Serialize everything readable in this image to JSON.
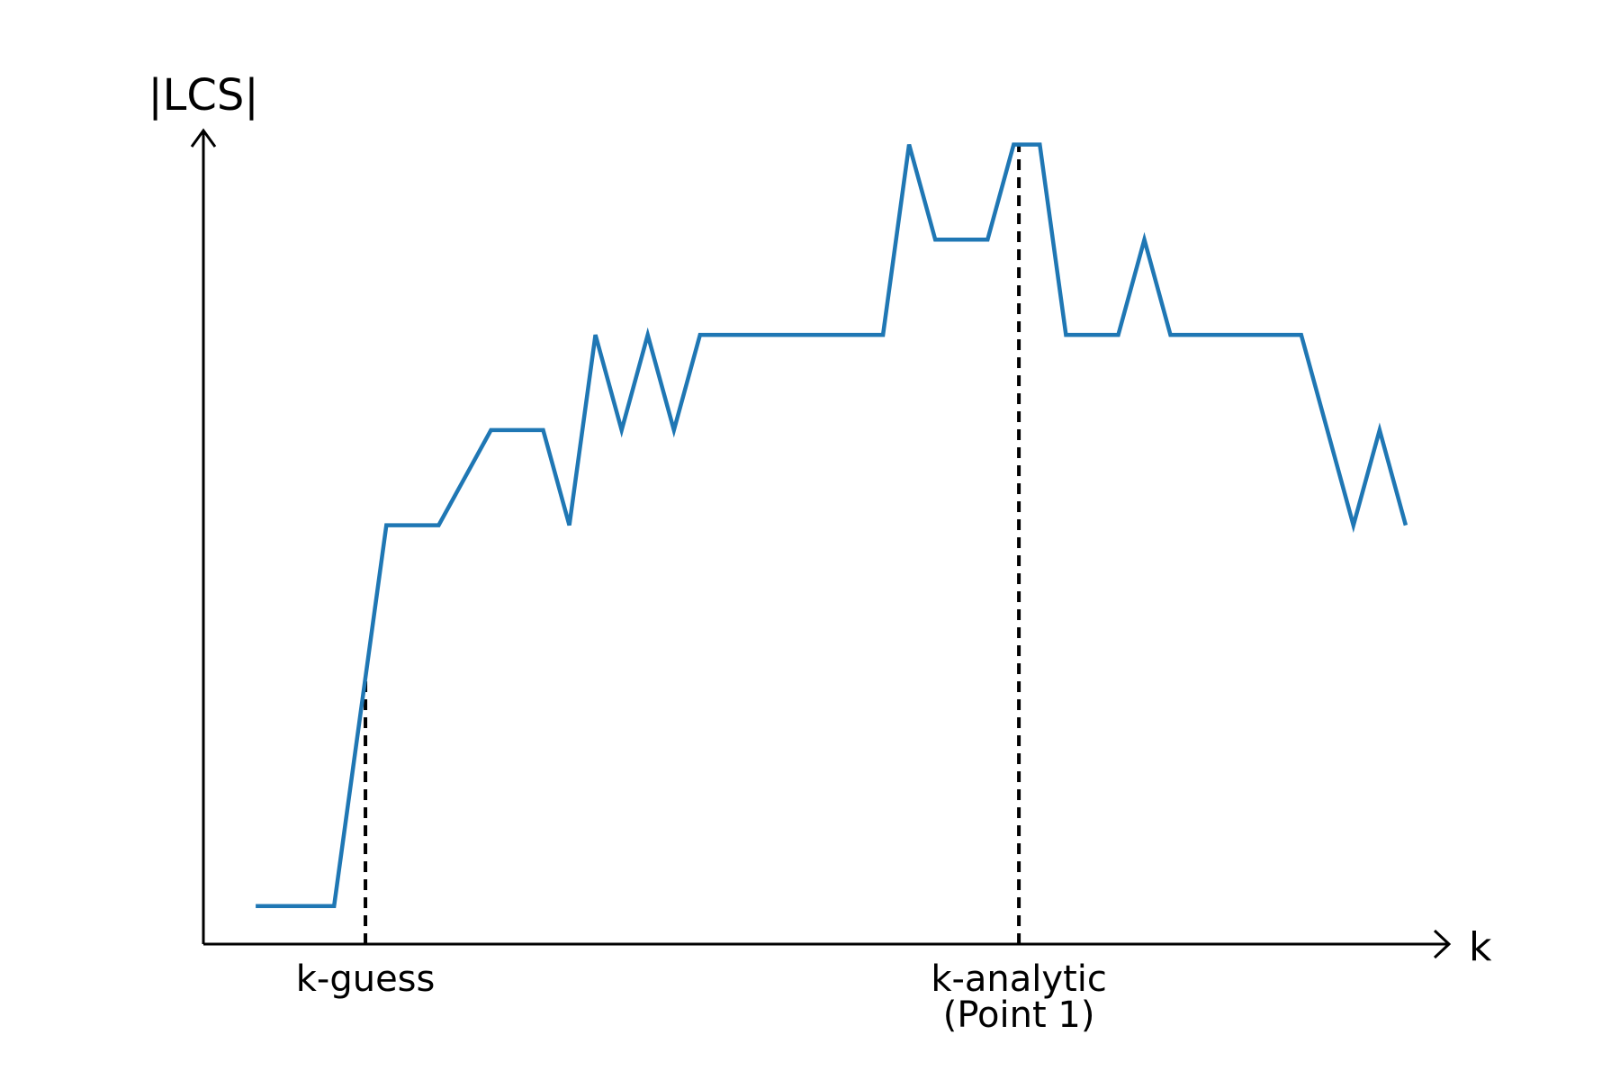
{
  "chart_data": {
    "type": "line",
    "xlabel": "k",
    "ylabel": "|LCS|",
    "xlim": [
      0,
      24
    ],
    "ylim": [
      0,
      17
    ],
    "grid": false,
    "series": [
      {
        "color": "#1f77b4",
        "points": [
          [
            1,
            0.8
          ],
          [
            2.5,
            0.8
          ],
          [
            3.5,
            8.8
          ],
          [
            4.5,
            8.8
          ],
          [
            5.5,
            10.8
          ],
          [
            6.5,
            10.8
          ],
          [
            7,
            8.8
          ],
          [
            7.5,
            12.8
          ],
          [
            8,
            10.8
          ],
          [
            8.5,
            12.8
          ],
          [
            9,
            10.8
          ],
          [
            9.5,
            12.8
          ],
          [
            13,
            12.8
          ],
          [
            13.5,
            16.8
          ],
          [
            14,
            14.8
          ],
          [
            15,
            14.8
          ],
          [
            15.5,
            16.8
          ],
          [
            16,
            16.8
          ],
          [
            16.5,
            12.8
          ],
          [
            17.5,
            12.8
          ],
          [
            18,
            14.8
          ],
          [
            18.5,
            12.8
          ],
          [
            21,
            12.8
          ],
          [
            22,
            8.8
          ],
          [
            22.5,
            10.8
          ],
          [
            23,
            8.8
          ]
        ]
      }
    ],
    "markers": [
      {
        "label": "k-guess",
        "x": 3.1
      },
      {
        "label": "k-analytic",
        "sublabel": "(Point 1)",
        "x": 15.6
      }
    ]
  }
}
